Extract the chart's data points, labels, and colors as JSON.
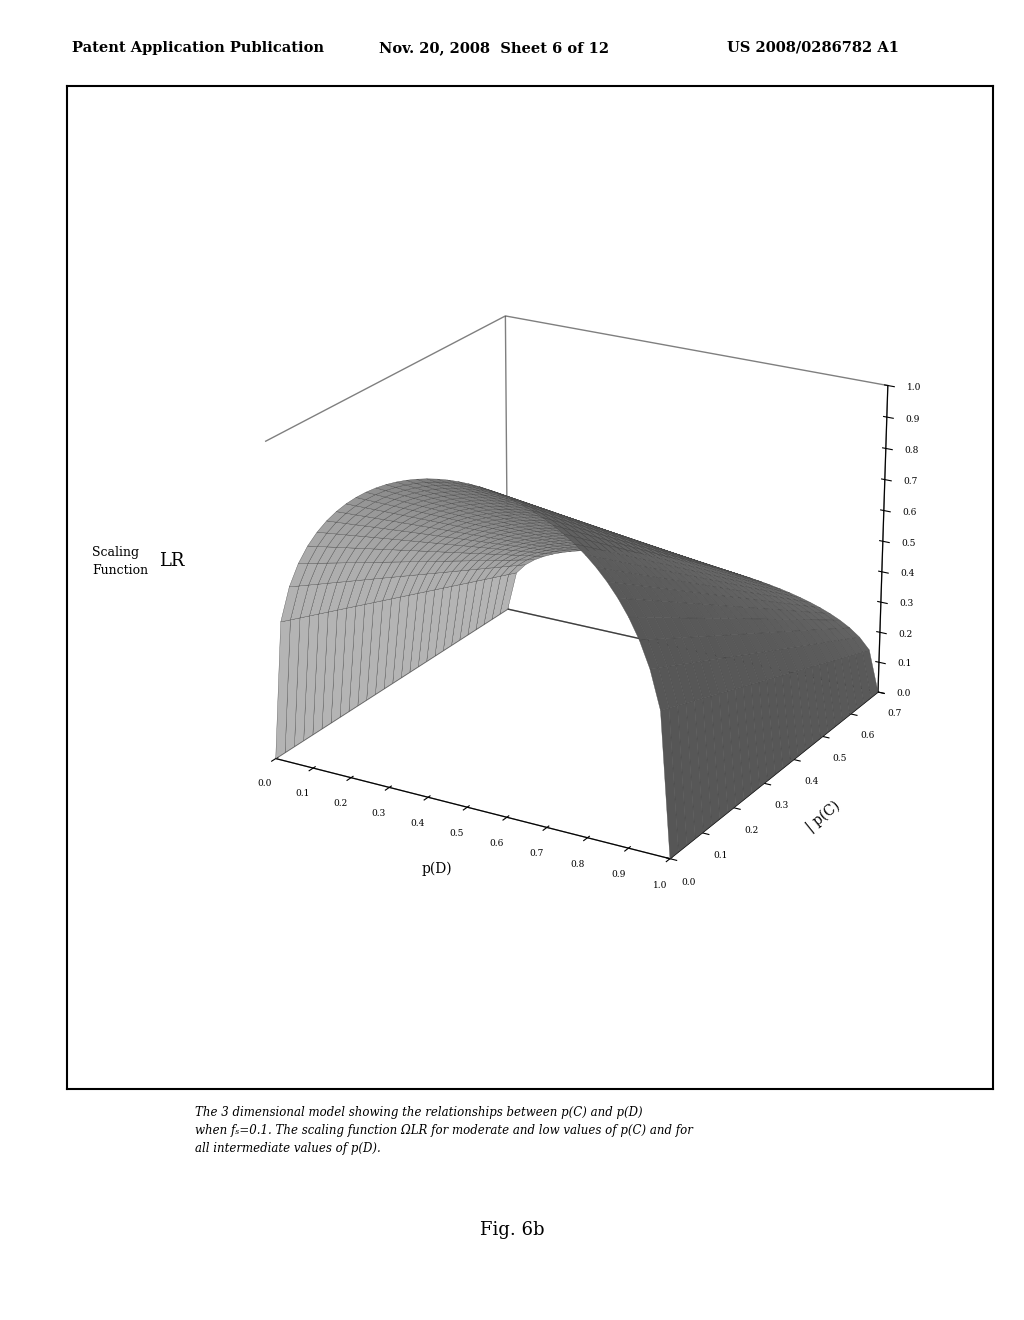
{
  "header_left": "Patent Application Publication",
  "header_center": "Nov. 20, 2008  Sheet 6 of 12",
  "header_right": "US 2008/0286782 A1",
  "zlabel_text": "Scaling\nFunction  LR",
  "xlabel": "p(D)",
  "ylabel": "| p(C)",
  "fs": 0.1,
  "caption_line1": "The 3 dimensional model showing the relationships between p(C) and p(D)",
  "caption_line2": "when fₛ=0.1. The scaling function ΩLR for moderate and low values of p(C) and for",
  "caption_line3": "all intermediate values of p(D).",
  "fig_label": "Fig. 6b",
  "background_color": "#ffffff",
  "surface_color": "#cccccc",
  "surface_edge_color": "#444444",
  "pane_edge_color": "#000000",
  "elev": 22,
  "azim": -60
}
